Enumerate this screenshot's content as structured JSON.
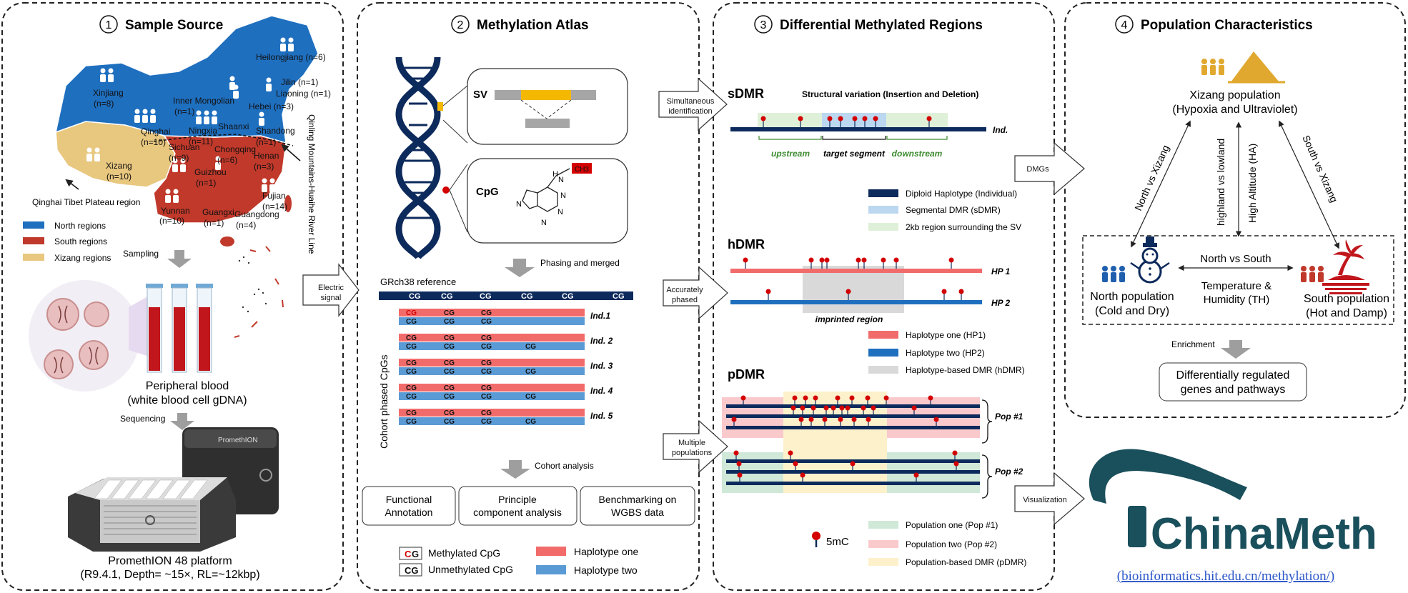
{
  "panels": [
    {
      "num": "1",
      "title": "Sample Source"
    },
    {
      "num": "2",
      "title": "Methylation Atlas"
    },
    {
      "num": "3",
      "title": "Differential Methylated Regions"
    },
    {
      "num": "4",
      "title": "Population Characteristics"
    }
  ],
  "panel1": {
    "map_labels": {
      "heilongjiang": "Heilongjiang (n=6)",
      "jilin": "Jilin (n=1)",
      "liaoning": "Liaoning (n=1)",
      "xinjiang": "Xinjiang",
      "xinjiang_n": "(n=8)",
      "inner_mongolia": "Inner Mongolian",
      "inner_mongolia_n": "(n=1)",
      "hebei": "Hebei (n=3)",
      "qinghai": "Qinghai",
      "qinghai_n": "(n=10)",
      "ningxia": "Ningxia",
      "ningxia_n": "(n=11)",
      "shaanxi": "Shaanxi",
      "shandong": "Shandong",
      "shandong_n": "(n=1)",
      "henan": "Henan",
      "henan_n": "(n=3)",
      "xizang": "Xizang",
      "xizang_n": "(n=10)",
      "sichuan": "Sichuan",
      "sichuan_n": "(n=9)",
      "chongqing": "Chongqing",
      "chongqing_n": "(n=6)",
      "guizhou": "Guizhou",
      "guizhou_n": "(n=1)",
      "fujian": "Fujian",
      "fujian_n": "(n=14)",
      "yunnan": "Yunnan",
      "yunnan_n": "(n=10)",
      "guangxi": "Guangxi",
      "guangxi_n": "(n=1)",
      "guangdong": "Guangdong",
      "guangdong_n": "(n=4)"
    },
    "plateau_label": "Qinghai Tibet Plateau region",
    "river_line": "Qinling Mountains-Huaihe River Line",
    "legend": [
      {
        "label": "North regions",
        "color": "#1f6fbf"
      },
      {
        "label": "South regions",
        "color": "#c0392b"
      },
      {
        "label": "Xizang regions",
        "color": "#e8c77f"
      }
    ],
    "sampling": "Sampling",
    "blood_line1": "Peripheral blood",
    "blood_line2": "(white blood cell gDNA)",
    "sequencing": "Sequencing",
    "device_label": "PromethION",
    "platform_line1": "PromethION 48 platform",
    "platform_line2": "(R9.4.1, Depth= ~15×, RL=~12kbp)"
  },
  "arrows": {
    "electric1": "Electric",
    "electric2": "signal",
    "simul1": "Simultaneous",
    "simul2": "identification",
    "acc1": "Accurately",
    "acc2": "phased",
    "multi1": "Multiple",
    "multi2": "populations",
    "dmgs": "DMGs",
    "visualization": "Visualization"
  },
  "panel2": {
    "sv": "SV",
    "cpg": "CpG",
    "ch3": "CH3",
    "phasing": "Phasing and merged",
    "reference": "GRch38 reference",
    "cg": "CG",
    "cohort_axis": "Cohort phased CpGs",
    "individuals": [
      "Ind.1",
      "Ind. 2",
      "Ind. 3",
      "Ind. 4",
      "Ind. 5"
    ],
    "cohort_analysis": "Cohort analysis",
    "analysis_boxes": [
      {
        "l1": "Functional",
        "l2": "Annotation"
      },
      {
        "l1": "Principle",
        "l2": "component analysis"
      },
      {
        "l1": "Benchmarking on",
        "l2": "WGBS data"
      }
    ],
    "legend_methylated": "Methylated CpG",
    "legend_unmethylated": "Unmethylated CpG",
    "legend_hap1": "Haplotype one",
    "legend_hap2": "Haplotype two",
    "hap1_color": "#f26b6b",
    "hap2_color": "#5b9bd5"
  },
  "panel3": {
    "sdmr": "sDMR",
    "sv_title": "Structural variation (Insertion and Deletion)",
    "ind": "Ind.",
    "upstream": "upstream",
    "target": "target segment",
    "downstream": "downstream",
    "sdmr_legend": [
      {
        "label": "Diploid Haplotype (Individual)",
        "color": "#0d2a5c"
      },
      {
        "label": "Segmental DMR (sDMR)",
        "color": "#bcd7f0"
      },
      {
        "label": "2kb region surrounding the SV",
        "color": "#dff0d8"
      }
    ],
    "hdmr": "hDMR",
    "hp1": "HP 1",
    "hp2": "HP 2",
    "imprinted": "imprinted region",
    "hdmr_legend": [
      {
        "label": "Haplotype one (HP1)",
        "color": "#f26b6b"
      },
      {
        "label": "Haplotype two (HP2)",
        "color": "#1f6fbf"
      },
      {
        "label": "Haplotype-based DMR (hDMR)",
        "color": "#d9d9d9"
      }
    ],
    "pdmr": "pDMR",
    "pop1": "Pop #1",
    "pop2": "Pop #2",
    "mc": "5mC",
    "pdmr_legend": [
      {
        "label": "Population one (Pop #1)",
        "color": "#cfe8d8"
      },
      {
        "label": "Population two (Pop #2)",
        "color": "#f9c9cc"
      },
      {
        "label": "Population-based DMR (pDMR)",
        "color": "#fdf1cc"
      }
    ]
  },
  "panel4": {
    "xizang_line1": "Xizang population",
    "xizang_line2": "(Hypoxia and Ultraviolet)",
    "north_vs_xizang": "North vs Xizang",
    "highland": "highland vs lowland",
    "high_altitude": "High Altitude (HA)",
    "south_vs_xizang": "South vs Xizang",
    "north_vs_south": "North vs South",
    "temperature": "Temperature &",
    "humidity": "Humidity (TH)",
    "north_line1": "North population",
    "north_line2": "(Cold and Dry)",
    "south_line1": "South population",
    "south_line2": "(Hot and Damp)",
    "enrichment": "Enrichment",
    "genes_line1": "Differentially regulated",
    "genes_line2": "genes and pathways"
  },
  "logo": {
    "name": "ChinaMeth",
    "url": "(bioinformatics.hit.edu.cn/methylation/)",
    "color": "#1a4f5c"
  }
}
